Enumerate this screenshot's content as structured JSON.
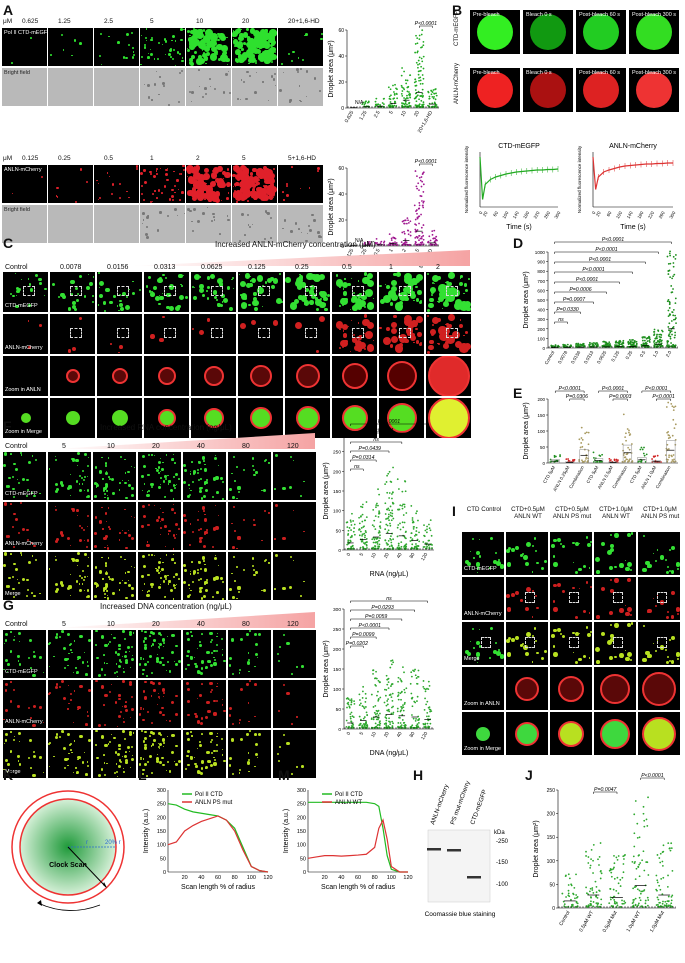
{
  "panels": {
    "A": {
      "label": "A",
      "row1": {
        "unit": "μM",
        "concs": [
          "0.625",
          "1.25",
          "2.5",
          "5",
          "10",
          "20",
          "20+1,6-HD"
        ],
        "fluor_label": "Pol II CTD-mEGFP",
        "bf_label": "Bright field"
      },
      "row2": {
        "unit": "μM",
        "concs": [
          "0.125",
          "0.25",
          "0.5",
          "1",
          "2",
          "5",
          "5+1,6-HD"
        ],
        "fluor_label": "ANLN-mCherry",
        "bf_label": "Bright field"
      },
      "chart1": {
        "ylabel": "Droplet area (μm²)",
        "yticks": [
          "0",
          "20",
          "40",
          "60"
        ],
        "xticks": [
          "0.625",
          "1.25",
          "2.5",
          "5",
          "10",
          "20",
          "20+1,6-HD"
        ],
        "na": "N/A",
        "pval": "P<0.0001",
        "color": "#22aa22"
      },
      "chart2": {
        "ylabel": "Droplet area (μm²)",
        "yticks": [
          "0",
          "20",
          "40",
          "60"
        ],
        "xticks": [
          "0.125",
          "0.25",
          "0.5",
          "1",
          "2",
          "5",
          "5+1,6-HD"
        ],
        "na": "N/A",
        "pval": "P<0.0001",
        "color": "#a01890"
      }
    },
    "B": {
      "label": "B",
      "headers": [
        "Pre-bleach",
        "Bleach 0 s",
        "Post-bleach 60 s",
        "Post-bleach 300 s"
      ],
      "rows": [
        "CTD-mEGFP",
        "ANLN-mCherry"
      ],
      "frap1": {
        "title": "CTD-mEGFP",
        "ylabel": "Normalized fluorescence intensity",
        "xlabel": "Time (s)",
        "xticks": [
          "0",
          "20",
          "60",
          "100",
          "140",
          "180",
          "220",
          "260",
          "300"
        ],
        "yticks": [
          "0.0",
          "0.5",
          "1.0"
        ],
        "color": "#22aa22"
      },
      "frap2": {
        "title": "ANLN-mCherry",
        "ylabel": "Normalized fluorescence intensity",
        "xlabel": "Time (s)",
        "xticks": [
          "0",
          "20",
          "60",
          "100",
          "140",
          "180",
          "220",
          "260",
          "300"
        ],
        "yticks": [
          "0.0",
          "0.5",
          "1.0"
        ],
        "color": "#dd3333"
      }
    },
    "C": {
      "label": "C",
      "title": "Increased ANLN-mCherry concentration (μM)",
      "cols": [
        "Control",
        "0.0078",
        "0.0156",
        "0.0313",
        "0.0625",
        "0.125",
        "0.25",
        "0.5",
        "1",
        "2"
      ],
      "rows": [
        "CTD-mEGFP",
        "ANLN-mCherry",
        "Zoom in ANLN",
        "Zoom in Merge"
      ]
    },
    "D": {
      "label": "D",
      "ylabel": "Droplet area (μm²)",
      "yticks": [
        "0",
        "100",
        "200",
        "300",
        "400",
        "500",
        "600",
        "700",
        "800",
        "900",
        "1000"
      ],
      "xticks": [
        "Control",
        "0.0078",
        "0.0156",
        "0.0313",
        "0.0625",
        "0.125",
        "0.25",
        "0.5",
        "1.0",
        "2.0"
      ],
      "pvals": [
        "P<0.0001",
        "P<0.0001",
        "P<0.0001",
        "P<0.0001",
        "P<0.0001",
        "P=0.0006",
        "P=0.0007",
        "P=0.0330",
        "ns"
      ]
    },
    "E": {
      "label": "E",
      "ylabel": "Droplet area (μm²)",
      "yticks": [
        "0",
        "50",
        "100",
        "150",
        "200"
      ],
      "xticks": [
        "CTD 5μM",
        "ANLN 0.25μM",
        "Combination",
        "CTD 5μM",
        "ANLN 0.5μM",
        "Combination",
        "CTD 5μM",
        "ANLN 1.0μM",
        "Combination"
      ],
      "pvals": [
        "P<0.0001",
        "P=0.0306",
        "P<0.0001",
        "P=0.0003",
        "P<0.0001",
        "P<0.0001"
      ]
    },
    "F": {
      "label": "F",
      "title": "Increased RNA concentration (ng/μL)",
      "cols": [
        "Control",
        "5",
        "10",
        "20",
        "40",
        "80",
        "120"
      ],
      "rows": [
        "CTD-mEGFP",
        "ANLN-mCherry",
        "Merge"
      ],
      "chart": {
        "ylabel": "Droplet area (μm²)",
        "xlabel": "RNA (ng/μL)",
        "yticks": [
          "0",
          "50",
          "100",
          "150",
          "200",
          "250",
          "300"
        ],
        "xticks": [
          "0",
          "5",
          "10",
          "20",
          "40",
          "80",
          "120"
        ],
        "pvals": [
          "P<0.0001",
          "P<0.0001",
          "ns",
          "P=0.0439",
          "P=0.0314",
          "ns"
        ]
      }
    },
    "G": {
      "label": "G",
      "title": "Increased DNA concentration (ng/μL)",
      "cols": [
        "Control",
        "5",
        "10",
        "20",
        "40",
        "80",
        "120"
      ],
      "rows": [
        "CTD-mEGFP",
        "ANLN-mCherry",
        "Merge"
      ],
      "chart": {
        "ylabel": "Droplet area (μm²)",
        "xlabel": "DNA (ng/μL)",
        "yticks": [
          "0",
          "50",
          "100",
          "150",
          "200",
          "250",
          "300"
        ],
        "xticks": [
          "0",
          "5",
          "10",
          "20",
          "40",
          "80",
          "120"
        ],
        "pvals": [
          "ns",
          "P=0.0293",
          "P=0.0059",
          "P<0.0001",
          "P=0.0099",
          "P=0.0202"
        ]
      }
    },
    "I": {
      "label": "I",
      "cols": [
        "CTD Control",
        "CTD+0.5μM ANLN WT",
        "CTD+0.5μM ANLN PS mut",
        "CTD+1.0μM ANLN WT",
        "CTD+1.0μM ANLN PS mut"
      ],
      "rows": [
        "CTD-mEGFP",
        "ANLN-mCherry",
        "Merge",
        "Zoom in ANLN",
        "Zoom in Merge"
      ]
    },
    "K": {
      "label": "K",
      "center_text": "Clock Scan",
      "r_label": "r",
      "pct_label": "20% r"
    },
    "L": {
      "label": "L",
      "ylabel": "Intensity (a.u.)",
      "xlabel": "Scan length % of radius",
      "legend": [
        "Pol II CTD",
        "ANLN PS mut"
      ],
      "yticks": [
        "0",
        "50",
        "100",
        "150",
        "200",
        "250",
        "300"
      ],
      "xticks": [
        "20",
        "40",
        "60",
        "80",
        "100",
        "120"
      ]
    },
    "M": {
      "label": "M",
      "ylabel": "Intensity (a.u.)",
      "xlabel": "Scan length % of radius",
      "legend": [
        "Pol II CTD",
        "ANLN WT"
      ],
      "yticks": [
        "0",
        "50",
        "100",
        "150",
        "200",
        "250",
        "300"
      ],
      "xticks": [
        "20",
        "40",
        "60",
        "80",
        "100",
        "120"
      ]
    },
    "H": {
      "label": "H",
      "lanes": [
        "ANLN-mCherry",
        "PS mut-mCherry",
        "CTD-mEGFP"
      ],
      "unit": "kDa",
      "markers": [
        "250",
        "150",
        "100"
      ],
      "caption": "Coomassie blue staining"
    },
    "J": {
      "label": "J",
      "ylabel": "Droplet area (μm²)",
      "yticks": [
        "0",
        "50",
        "100",
        "150",
        "200",
        "250"
      ],
      "xticks": [
        "Control",
        "0.5μM WT",
        "0.5μM Mut",
        "1.0μM WT",
        "1.0μM Mut"
      ],
      "pvals": [
        "P=0.0047",
        "P<0.0001"
      ]
    }
  },
  "chart_data": [
    {
      "type": "line",
      "title": "CTD-mEGFP",
      "xlabel": "Time (s)",
      "ylabel": "Normalized fluorescence intensity",
      "x": [
        0,
        10,
        20,
        40,
        60,
        80,
        100,
        120,
        140,
        160,
        180,
        200,
        220,
        240,
        260,
        280,
        300
      ],
      "series": [
        {
          "values": [
            1.0,
            0.15,
            0.45,
            0.55,
            0.6,
            0.63,
            0.66,
            0.68,
            0.7,
            0.71,
            0.72,
            0.73,
            0.74,
            0.74,
            0.75,
            0.75,
            0.76
          ]
        }
      ],
      "ylim": [
        0,
        1.1
      ]
    },
    {
      "type": "line",
      "title": "ANLN-mCherry",
      "xlabel": "Time (s)",
      "ylabel": "Normalized fluorescence intensity",
      "x": [
        0,
        10,
        20,
        40,
        60,
        80,
        100,
        120,
        140,
        160,
        180,
        200,
        220,
        240,
        260,
        280,
        300
      ],
      "series": [
        {
          "values": [
            1.0,
            0.35,
            0.6,
            0.7,
            0.74,
            0.77,
            0.8,
            0.82,
            0.83,
            0.84,
            0.85,
            0.86,
            0.86,
            0.87,
            0.87,
            0.88,
            0.88
          ]
        }
      ],
      "ylim": [
        0,
        1.1
      ]
    },
    {
      "type": "line",
      "title": "",
      "xlabel": "Scan length % of radius",
      "ylabel": "Intensity (a.u.)",
      "x": [
        0,
        10,
        20,
        30,
        40,
        50,
        60,
        70,
        80,
        90,
        100,
        110,
        120
      ],
      "series": [
        {
          "name": "Pol II CTD",
          "values": [
            250,
            245,
            230,
            220,
            215,
            210,
            205,
            190,
            160,
            90,
            20,
            5,
            0
          ]
        },
        {
          "name": "ANLN PS mut",
          "values": [
            100,
            110,
            150,
            170,
            185,
            195,
            205,
            190,
            150,
            80,
            20,
            5,
            0
          ]
        }
      ],
      "ylim": [
        0,
        300
      ],
      "xlim": [
        0,
        120
      ]
    },
    {
      "type": "line",
      "title": "",
      "xlabel": "Scan length % of radius",
      "ylabel": "Intensity (a.u.)",
      "x": [
        0,
        10,
        20,
        30,
        40,
        50,
        60,
        70,
        80,
        85,
        90,
        95,
        100,
        110,
        120
      ],
      "series": [
        {
          "name": "Pol II CTD",
          "values": [
            255,
            255,
            255,
            255,
            255,
            255,
            255,
            255,
            250,
            240,
            160,
            60,
            10,
            0,
            0
          ]
        },
        {
          "name": "ANLN WT",
          "values": [
            50,
            55,
            60,
            60,
            58,
            60,
            62,
            65,
            90,
            160,
            190,
            120,
            20,
            0,
            0
          ]
        }
      ],
      "ylim": [
        0,
        300
      ],
      "xlim": [
        0,
        120
      ]
    }
  ]
}
